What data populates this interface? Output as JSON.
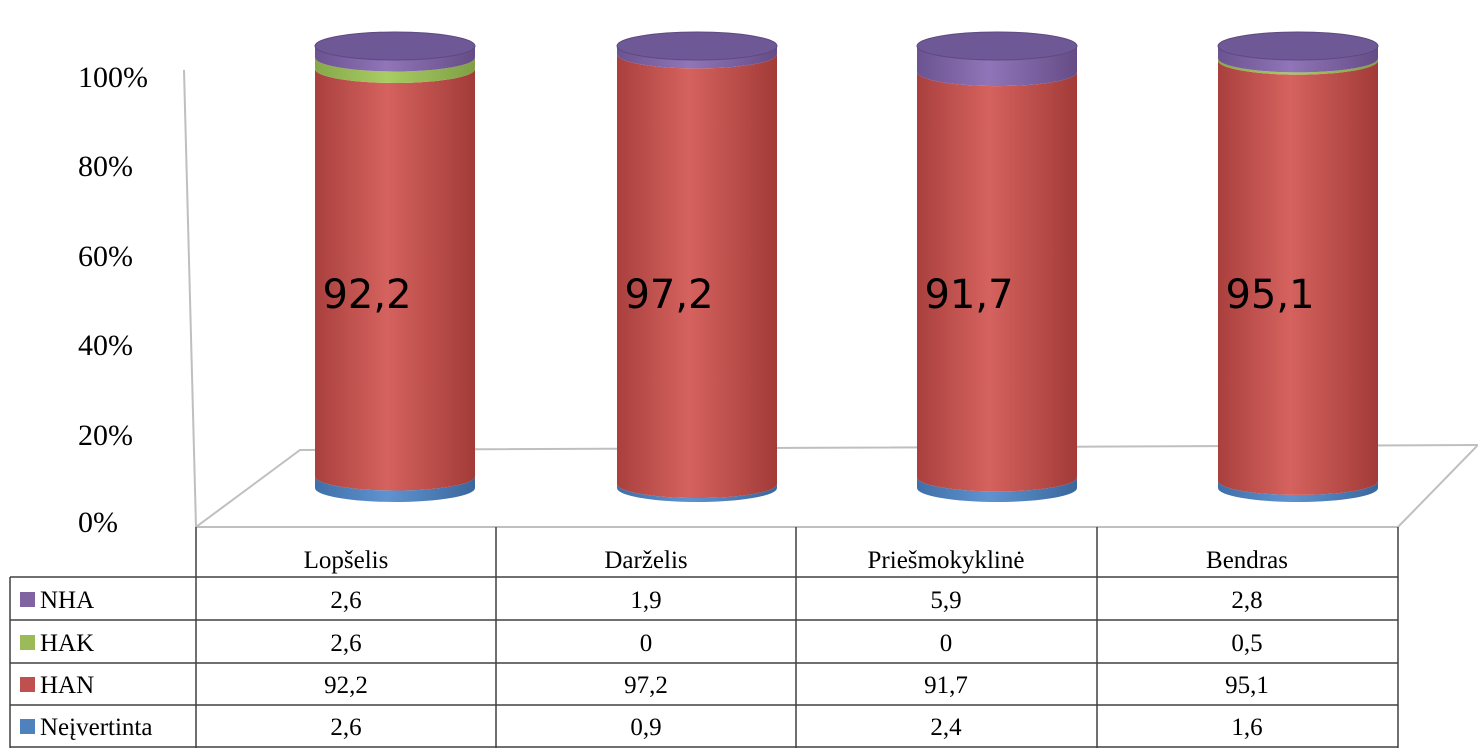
{
  "chart_data": {
    "type": "bar",
    "stacked": true,
    "three_d": true,
    "shape": "cylinder",
    "categories": [
      "Lopšelis",
      "Darželis",
      "Priešmokyklinė",
      "Bendras"
    ],
    "series": [
      {
        "name": "Neįvertinta",
        "color": "#4f81bd",
        "values": [
          "2,6",
          "0,9",
          "2,4",
          "1,6"
        ]
      },
      {
        "name": "HAN",
        "color": "#c0504d",
        "values": [
          "92,2",
          "97,2",
          "91,7",
          "95,1"
        ]
      },
      {
        "name": "HAK",
        "color": "#9bbb59",
        "values": [
          "2,6",
          "0",
          "0",
          "0,5"
        ]
      },
      {
        "name": "NHA",
        "color": "#8064a2",
        "values": [
          "2,6",
          "1,9",
          "5,9",
          "2,8"
        ]
      }
    ],
    "table_order": [
      "NHA",
      "HAK",
      "HAN",
      "Neįvertinta"
    ],
    "data_labels_series": "HAN",
    "y_ticks": [
      "0%",
      "20%",
      "40%",
      "60%",
      "80%",
      "100%"
    ],
    "ylim": [
      0,
      100
    ],
    "data_table": true,
    "legend": "in-table"
  }
}
